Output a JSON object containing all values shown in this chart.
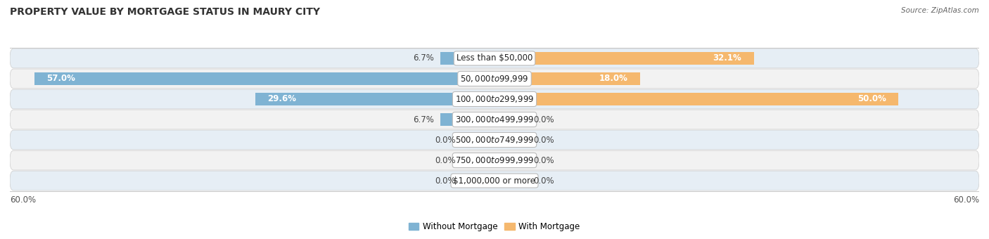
{
  "title": "PROPERTY VALUE BY MORTGAGE STATUS IN MAURY CITY",
  "source": "Source: ZipAtlas.com",
  "categories": [
    "Less than $50,000",
    "$50,000 to $99,999",
    "$100,000 to $299,999",
    "$300,000 to $499,999",
    "$500,000 to $749,999",
    "$750,000 to $999,999",
    "$1,000,000 or more"
  ],
  "without_mortgage": [
    6.7,
    57.0,
    29.6,
    6.7,
    0.0,
    0.0,
    0.0
  ],
  "with_mortgage": [
    32.1,
    18.0,
    50.0,
    0.0,
    0.0,
    0.0,
    0.0
  ],
  "without_mortgage_color": "#7fb3d3",
  "with_mortgage_color": "#f5b86e",
  "without_mortgage_color_light": "#b8d4e8",
  "with_mortgage_color_light": "#fad5a5",
  "row_bg_odd": "#f2f2f2",
  "row_bg_even": "#e6eef5",
  "xlim": 60.0,
  "label_fontsize": 8.5,
  "title_fontsize": 10,
  "bar_height": 0.65,
  "figsize": [
    14.06,
    3.4
  ],
  "dpi": 100,
  "zero_stub": 4.0
}
